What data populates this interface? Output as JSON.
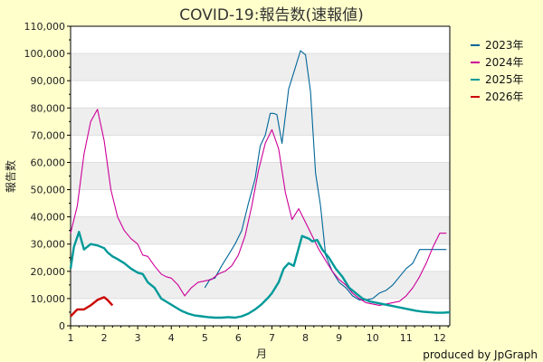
{
  "chart_data": {
    "type": "line",
    "title": "COVID-19:報告数(速報値)",
    "xlabel": "月",
    "ylabel": "報告数",
    "xlim": [
      1,
      12.3
    ],
    "ylim": [
      0,
      110000
    ],
    "x_ticks": [
      "1",
      "2",
      "3",
      "4",
      "5",
      "6",
      "7",
      "8",
      "9",
      "10",
      "11",
      "12"
    ],
    "y_ticks": [
      "0",
      "10,000",
      "20,000",
      "30,000",
      "40,000",
      "50,000",
      "60,000",
      "70,000",
      "80,000",
      "90,000",
      "100,000",
      "110,000"
    ],
    "grid": "horizontal bands",
    "legend_position": "top-right",
    "credit": "produced by JpGraph",
    "series": [
      {
        "name": "2023年",
        "color": "#006699",
        "thick": false,
        "x": [
          5.0,
          5.15,
          5.3,
          5.5,
          5.7,
          5.9,
          6.1,
          6.3,
          6.5,
          6.65,
          6.8,
          6.95,
          7.05,
          7.15,
          7.3,
          7.5,
          7.65,
          7.85,
          8.0,
          8.15,
          8.3,
          8.45,
          8.6,
          8.8,
          9.0,
          9.2,
          9.4,
          9.6,
          9.8,
          10.0,
          10.2,
          10.4,
          10.6,
          10.8,
          11.0,
          11.2,
          11.4,
          11.6,
          11.8,
          12.0,
          12.2
        ],
        "y": [
          14000,
          17000,
          17500,
          22000,
          26000,
          30000,
          35000,
          45000,
          54000,
          66000,
          70000,
          78000,
          78000,
          77500,
          67000,
          87000,
          93000,
          101000,
          99500,
          86000,
          56000,
          44000,
          26000,
          20000,
          16000,
          14000,
          11000,
          9500,
          9500,
          10000,
          12000,
          13000,
          15000,
          18000,
          21000,
          23000,
          28000,
          28000,
          28000,
          28000,
          28000
        ]
      },
      {
        "name": "2024年",
        "color": "#cc0099",
        "thick": false,
        "x": [
          1.0,
          1.2,
          1.4,
          1.6,
          1.8,
          2.0,
          2.2,
          2.4,
          2.6,
          2.8,
          3.0,
          3.15,
          3.3,
          3.5,
          3.7,
          3.85,
          4.0,
          4.2,
          4.4,
          4.6,
          4.8,
          5.0,
          5.2,
          5.4,
          5.6,
          5.8,
          6.0,
          6.2,
          6.4,
          6.6,
          6.8,
          7.0,
          7.2,
          7.4,
          7.6,
          7.8,
          8.0,
          8.2,
          8.4,
          8.6,
          8.8,
          9.0,
          9.2,
          9.4,
          9.6,
          9.8,
          10.0,
          10.2,
          10.4,
          10.6,
          10.8,
          11.0,
          11.2,
          11.4,
          11.6,
          11.8,
          12.0,
          12.2
        ],
        "y": [
          34000,
          44000,
          63000,
          75000,
          79500,
          68000,
          50000,
          40000,
          35000,
          32000,
          30000,
          26000,
          25500,
          22000,
          19000,
          18000,
          17500,
          15000,
          11000,
          14000,
          16000,
          16500,
          17000,
          19000,
          20000,
          22000,
          26000,
          33000,
          44000,
          57000,
          67000,
          72000,
          65000,
          49000,
          39000,
          43000,
          38000,
          33000,
          28000,
          24000,
          20000,
          17000,
          15000,
          12000,
          10000,
          8500,
          8000,
          7500,
          8000,
          8500,
          9000,
          11000,
          14000,
          18000,
          23000,
          29000,
          34000,
          34000
        ]
      },
      {
        "name": "2025年",
        "color": "#009999",
        "thick": true,
        "x": [
          1.0,
          1.1,
          1.25,
          1.4,
          1.6,
          1.8,
          2.0,
          2.1,
          2.25,
          2.4,
          2.6,
          2.8,
          3.0,
          3.15,
          3.3,
          3.5,
          3.7,
          3.9,
          4.1,
          4.3,
          4.5,
          4.7,
          4.9,
          5.1,
          5.3,
          5.5,
          5.7,
          5.9,
          6.1,
          6.3,
          6.5,
          6.7,
          6.9,
          7.0,
          7.2,
          7.35,
          7.5,
          7.65,
          7.9,
          8.1,
          8.2,
          8.35,
          8.5,
          8.7,
          8.9,
          9.1,
          9.3,
          9.5,
          9.7,
          9.9,
          10.1,
          10.3,
          10.5,
          10.7,
          10.9,
          11.1,
          11.3,
          11.5,
          11.7,
          11.9,
          12.1,
          12.3
        ],
        "y": [
          21000,
          29000,
          34500,
          28000,
          30000,
          29500,
          28500,
          27000,
          25500,
          24500,
          23000,
          21000,
          19500,
          19000,
          16000,
          14000,
          10000,
          8500,
          7000,
          5500,
          4500,
          3800,
          3500,
          3200,
          3000,
          3000,
          3200,
          3000,
          3500,
          4500,
          6000,
          8000,
          10500,
          12000,
          16000,
          21000,
          23000,
          22000,
          33000,
          32000,
          31000,
          31500,
          28000,
          25000,
          21000,
          18000,
          14000,
          12000,
          10000,
          9000,
          8500,
          8000,
          7500,
          7000,
          6500,
          6000,
          5500,
          5200,
          5000,
          4800,
          4800,
          5000
        ]
      },
      {
        "name": "2026年",
        "color": "#cc0000",
        "thick": true,
        "x": [
          1.0,
          1.2,
          1.4,
          1.6,
          1.8,
          2.0,
          2.1,
          2.25
        ],
        "y": [
          3500,
          6000,
          6000,
          7500,
          9500,
          10500,
          9500,
          7500
        ]
      }
    ]
  }
}
